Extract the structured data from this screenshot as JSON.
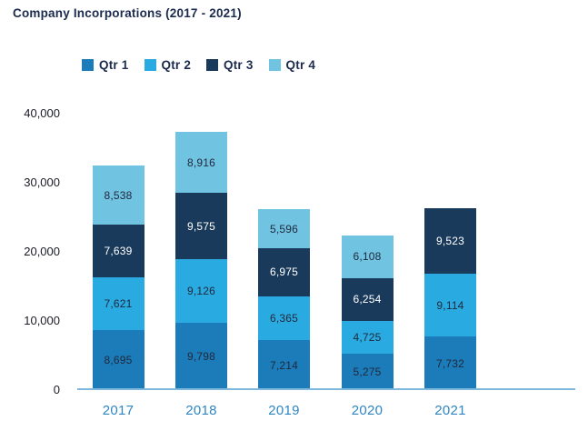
{
  "title": "Company Incorporations (2017 - 2021)",
  "legend": [
    {
      "label": "Qtr 1",
      "color": "#1B7CB9"
    },
    {
      "label": "Qtr 2",
      "color": "#29ABE2"
    },
    {
      "label": "Qtr 3",
      "color": "#1A3A5C"
    },
    {
      "label": "Qtr 4",
      "color": "#70C3E1"
    }
  ],
  "chart_data": {
    "type": "bar",
    "stacked": true,
    "title": "Company Incorporations (2017 - 2021)",
    "categories": [
      "2017",
      "2018",
      "2019",
      "2020",
      "2021"
    ],
    "series": [
      {
        "name": "Qtr 1",
        "color": "#1B7CB9",
        "label_color": "#20293D",
        "values": [
          8695,
          9798,
          7214,
          5275,
          7732
        ]
      },
      {
        "name": "Qtr 2",
        "color": "#29ABE2",
        "label_color": "#20293D",
        "values": [
          7621,
          9126,
          6365,
          4725,
          9114
        ]
      },
      {
        "name": "Qtr 3",
        "color": "#1A3A5C",
        "label_color": "#FFFFFF",
        "values": [
          7639,
          9575,
          6975,
          6254,
          9523
        ]
      },
      {
        "name": "Qtr 4",
        "color": "#70C3E1",
        "label_color": "#20293D",
        "values": [
          8538,
          8916,
          5596,
          6108,
          0
        ]
      }
    ],
    "totals": [
      32493,
      37415,
      26150,
      22362,
      26369
    ],
    "ylim": [
      0,
      40000
    ],
    "yticks": [
      0,
      10000,
      20000,
      30000,
      40000
    ],
    "ytick_labels": [
      "0",
      "10,000",
      "20,000",
      "30,000",
      "40,000"
    ],
    "grid": false,
    "data_labels": true,
    "legend_position": "top"
  },
  "colors": {
    "background": "#FFFFFF",
    "title_text": "#1B2A4D",
    "legend_text": "#1B2A4D",
    "ytick_text": "#1A1A24",
    "xtick_text": "#2E86C4",
    "axis_line": "#7EB8DC"
  }
}
